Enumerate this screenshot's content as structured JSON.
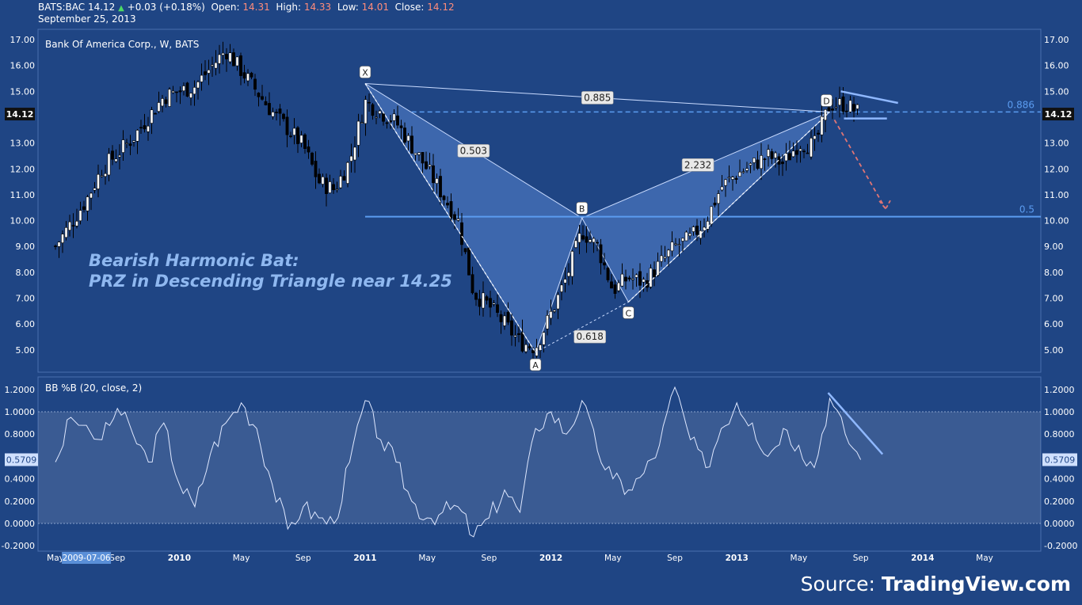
{
  "header": {
    "symbol": "BATS:BAC",
    "last": "14.12",
    "change": "+0.03 (+0.18%)",
    "open_label": "Open:",
    "open": "14.31",
    "high_label": "High:",
    "high": "14.33",
    "low_label": "Low:",
    "low": "14.01",
    "close_label": "Close:",
    "close": "14.12",
    "date": "September 25, 2013"
  },
  "legend": "Bank Of America Corp., W, BATS",
  "annotation": [
    "Bearish Harmonic Bat:",
    "PRZ in Descending Triangle near 14.25"
  ],
  "source": {
    "prefix": "Source:",
    "brand": "TradingView.com"
  },
  "colors": {
    "background": "#1f4584",
    "pattern_fill": "#5b8ad6",
    "level_line": "#5b9cf0",
    "annotation_text": "#8fb8f0",
    "projection_arrow": "#e07575",
    "trendline": "#8fb8ff"
  },
  "chart_data": [
    {
      "type": "candlestick",
      "title": "Bank Of America Corp., W, BATS",
      "ylim": [
        4.3,
        17.3
      ],
      "y_ticks": [
        "17.00",
        "16.00",
        "15.00",
        "14.00",
        "13.00",
        "12.00",
        "11.00",
        "10.00",
        "9.00",
        "8.00",
        "7.00",
        "6.00",
        "5.00"
      ],
      "last_price_label": "14.12",
      "x_ticks": [
        "May",
        "Sep",
        "2010",
        "May",
        "Sep",
        "2011",
        "May",
        "Sep",
        "2012",
        "May",
        "Sep",
        "2013",
        "May",
        "Sep",
        "2014",
        "May"
      ],
      "cursor_date": "2009-07-06",
      "approx_close_path": [
        [
          "2009-05",
          9.0
        ],
        [
          "2009-07",
          10.8
        ],
        [
          "2009-08",
          12.0
        ],
        [
          "2009-10",
          13.2
        ],
        [
          "2009-12",
          14.8
        ],
        [
          "2010-02",
          15.2
        ],
        [
          "2010-04",
          16.6
        ],
        [
          "2010-05",
          15.8
        ],
        [
          "2010-07",
          14.2
        ],
        [
          "2010-09",
          12.9
        ],
        [
          "2010-10",
          11.5
        ],
        [
          "2010-11",
          11.2
        ],
        [
          "2010-12",
          12.3
        ],
        [
          "2011-01",
          14.6
        ],
        [
          "2011-03",
          13.8
        ],
        [
          "2011-05",
          12.0
        ],
        [
          "2011-07",
          10.0
        ],
        [
          "2011-08",
          7.2
        ],
        [
          "2011-09",
          6.7
        ],
        [
          "2011-11",
          5.3
        ],
        [
          "2011-12",
          5.1
        ],
        [
          "2012-01",
          6.4
        ],
        [
          "2012-02",
          7.8
        ],
        [
          "2012-03",
          9.6
        ],
        [
          "2012-04",
          9.0
        ],
        [
          "2012-05",
          7.3
        ],
        [
          "2012-06",
          7.8
        ],
        [
          "2012-07",
          7.6
        ],
        [
          "2012-08",
          8.3
        ],
        [
          "2012-09",
          9.0
        ],
        [
          "2012-10",
          9.3
        ],
        [
          "2012-11",
          10.0
        ],
        [
          "2012-12",
          11.3
        ],
        [
          "2013-01",
          11.8
        ],
        [
          "2013-03",
          12.5
        ],
        [
          "2013-04",
          12.2
        ],
        [
          "2013-05",
          13.0
        ],
        [
          "2013-06",
          12.9
        ],
        [
          "2013-07",
          14.5
        ],
        [
          "2013-08",
          14.5
        ],
        [
          "2013-09",
          14.12
        ]
      ],
      "harmonic_points": [
        {
          "label": "X",
          "date": "2011-01",
          "value": 15.3
        },
        {
          "label": "A",
          "date": "2011-12",
          "value": 4.9
        },
        {
          "label": "B",
          "date": "2012-03",
          "value": 10.1
        },
        {
          "label": "C",
          "date": "2012-06",
          "value": 6.85
        },
        {
          "label": "D",
          "date": "2013-07",
          "value": 14.2
        }
      ],
      "ratios": [
        "0.503",
        "0.618",
        "2.232",
        "0.885"
      ],
      "levels": [
        {
          "label": "0.886",
          "value": 14.2,
          "style": "dashed"
        },
        {
          "label": "0.5",
          "value": 10.15,
          "style": "solid"
        }
      ]
    },
    {
      "type": "line",
      "title": "BB %B (20, close, 2)",
      "ylim": [
        -0.2,
        1.25
      ],
      "y_ticks": [
        "1.2000",
        "1.0000",
        "0.8000",
        "0.6000",
        "0.4000",
        "0.2000",
        "0.0000",
        "-0.2000"
      ],
      "band": [
        0.0,
        1.0
      ],
      "last_value_label": "0.5709",
      "approx_series": [
        [
          "2009-05",
          0.55
        ],
        [
          "2009-06",
          0.95
        ],
        [
          "2009-08",
          0.75
        ],
        [
          "2009-09",
          1.03
        ],
        [
          "2009-10",
          0.8
        ],
        [
          "2009-11",
          0.55
        ],
        [
          "2009-12",
          0.9
        ],
        [
          "2010-01",
          0.35
        ],
        [
          "2010-02",
          0.15
        ],
        [
          "2010-03",
          0.62
        ],
        [
          "2010-04",
          0.9
        ],
        [
          "2010-05",
          1.08
        ],
        [
          "2010-06",
          0.85
        ],
        [
          "2010-07",
          0.35
        ],
        [
          "2010-08",
          -0.05
        ],
        [
          "2010-09",
          0.15
        ],
        [
          "2010-10",
          0.05
        ],
        [
          "2010-11",
          0.0
        ],
        [
          "2010-12",
          0.55
        ],
        [
          "2011-01",
          1.1
        ],
        [
          "2011-02",
          0.75
        ],
        [
          "2011-03",
          0.55
        ],
        [
          "2011-04",
          0.2
        ],
        [
          "2011-05",
          0.05
        ],
        [
          "2011-06",
          0.1
        ],
        [
          "2011-07",
          0.15
        ],
        [
          "2011-08",
          -0.12
        ],
        [
          "2011-09",
          0.05
        ],
        [
          "2011-10",
          0.3
        ],
        [
          "2011-11",
          0.1
        ],
        [
          "2011-12",
          0.85
        ],
        [
          "2012-01",
          1.0
        ],
        [
          "2012-02",
          0.8
        ],
        [
          "2012-03",
          1.1
        ],
        [
          "2012-04",
          0.65
        ],
        [
          "2012-05",
          0.4
        ],
        [
          "2012-06",
          0.3
        ],
        [
          "2012-07",
          0.45
        ],
        [
          "2012-08",
          0.7
        ],
        [
          "2012-09",
          1.22
        ],
        [
          "2012-10",
          0.75
        ],
        [
          "2012-11",
          0.5
        ],
        [
          "2012-12",
          0.85
        ],
        [
          "2013-01",
          1.08
        ],
        [
          "2013-02",
          0.9
        ],
        [
          "2013-03",
          0.6
        ],
        [
          "2013-04",
          0.85
        ],
        [
          "2013-05",
          0.7
        ],
        [
          "2013-06",
          0.5
        ],
        [
          "2013-07",
          1.12
        ],
        [
          "2013-08",
          0.8
        ],
        [
          "2013-09",
          0.5709
        ]
      ]
    }
  ]
}
